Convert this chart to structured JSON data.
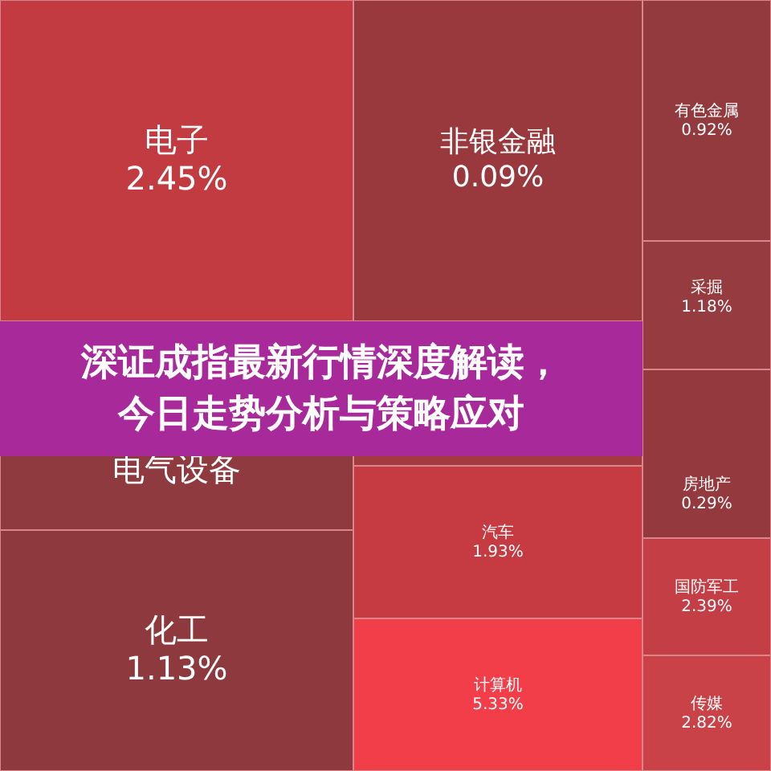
{
  "chart_data": {
    "type": "other",
    "title": "深证成指最新行情深度解读，今日走势分析与策略应对",
    "categories": [
      "电子",
      "电气设备",
      "化工",
      "非银金融",
      null,
      "汽车",
      "计算机",
      "有色金属",
      "采掘",
      "房地产",
      "国防军工",
      "传媒"
    ],
    "values": [
      2.45,
      null,
      1.13,
      0.09,
      null,
      1.93,
      5.33,
      0.92,
      1.18,
      0.29,
      2.39,
      2.82
    ],
    "value_labels": [
      "2.45%",
      null,
      "1.13%",
      "0.09%",
      null,
      "1.93%",
      "5.33%",
      "0.92%",
      "1.18%",
      "0.29%",
      "2.39%",
      "2.82%"
    ],
    "colors": [
      "#c23b41",
      "#8f3a3e",
      "#8d393d",
      "#9a393d",
      "#a33a3f",
      "#c63b41",
      "#f23e48",
      "#933a3e",
      "#963b3f",
      "#943a3e",
      "#c43f45",
      "#c94247"
    ]
  }
}
